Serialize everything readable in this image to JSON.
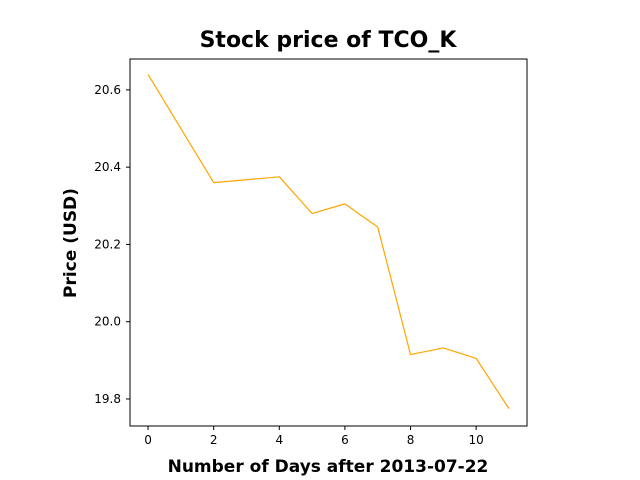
{
  "chart_data": {
    "type": "line",
    "title": "Stock price of TCO_K",
    "xlabel": "Number of Days after 2013-07-22",
    "ylabel": "Price (USD)",
    "xlim": [
      -0.55,
      11.55
    ],
    "ylim": [
      19.73,
      20.68
    ],
    "xticks": [
      0,
      2,
      4,
      6,
      8,
      10
    ],
    "yticks": [
      19.8,
      20.0,
      20.2,
      20.4,
      20.6
    ],
    "ytick_labels": [
      "19.8",
      "20.0",
      "20.2",
      "20.4",
      "20.6"
    ],
    "grid": false,
    "series": [
      {
        "color": "#ffa500",
        "x": [
          0,
          2,
          4,
          5,
          6,
          7,
          8,
          9,
          10,
          11
        ],
        "y": [
          20.64,
          20.36,
          20.375,
          20.28,
          20.305,
          20.245,
          19.915,
          19.932,
          19.905,
          19.775
        ]
      }
    ]
  }
}
